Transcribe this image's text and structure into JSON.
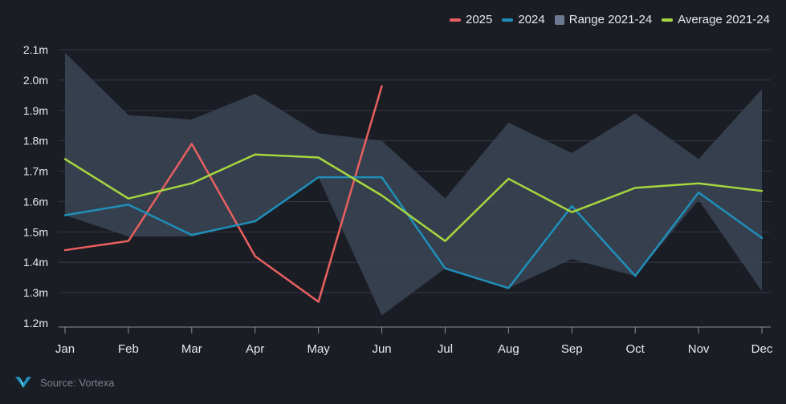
{
  "legend": {
    "s2025": "2025",
    "s2024": "2024",
    "range": "Range 2021-24",
    "average": "Average 2021-24"
  },
  "source": "Source: Vortexa",
  "colors": {
    "background": "#1b1d25",
    "s2025": "#e8605f",
    "s2024": "#1f8fb8",
    "range": "#3a4556",
    "range_legend": "#6b7a90",
    "average": "#a6d63f",
    "grid": "#343845",
    "text": "#e8e9ec",
    "axis": "#8a8f9c"
  },
  "chart_data": {
    "type": "line",
    "categories": [
      "Jan",
      "Feb",
      "Mar",
      "Apr",
      "May",
      "Jun",
      "Jul",
      "Aug",
      "Sep",
      "Oct",
      "Nov",
      "Dec"
    ],
    "ylim": [
      1.2,
      2.1
    ],
    "yticks": [
      1.2,
      1.3,
      1.4,
      1.5,
      1.6,
      1.7,
      1.8,
      1.9,
      2.0,
      2.1
    ],
    "ytick_labels": [
      "1.2m",
      "1.3m",
      "1.4m",
      "1.5m",
      "1.6m",
      "1.7m",
      "1.8m",
      "1.9m",
      "2.0m",
      "2.1m"
    ],
    "grid": true,
    "legend_position": "top-right",
    "series": [
      {
        "name": "2025",
        "kind": "line",
        "values": [
          1.44,
          1.47,
          1.79,
          1.42,
          1.27,
          1.98,
          null,
          null,
          null,
          null,
          null,
          null
        ]
      },
      {
        "name": "2024",
        "kind": "line",
        "values": [
          1.555,
          1.59,
          1.49,
          1.535,
          1.68,
          1.68,
          1.38,
          1.315,
          1.585,
          1.355,
          1.63,
          1.48
        ]
      },
      {
        "name": "Range 2021-24",
        "kind": "band",
        "low": [
          1.555,
          1.485,
          1.485,
          1.535,
          1.68,
          1.225,
          1.38,
          1.315,
          1.41,
          1.355,
          1.605,
          1.305
        ],
        "high": [
          2.09,
          1.885,
          1.87,
          1.955,
          1.825,
          1.8,
          1.61,
          1.86,
          1.76,
          1.89,
          1.74,
          1.97
        ]
      },
      {
        "name": "Average 2021-24",
        "kind": "line",
        "values": [
          1.74,
          1.61,
          1.66,
          1.755,
          1.745,
          1.62,
          1.47,
          1.675,
          1.565,
          1.645,
          1.66,
          1.635
        ]
      }
    ]
  }
}
